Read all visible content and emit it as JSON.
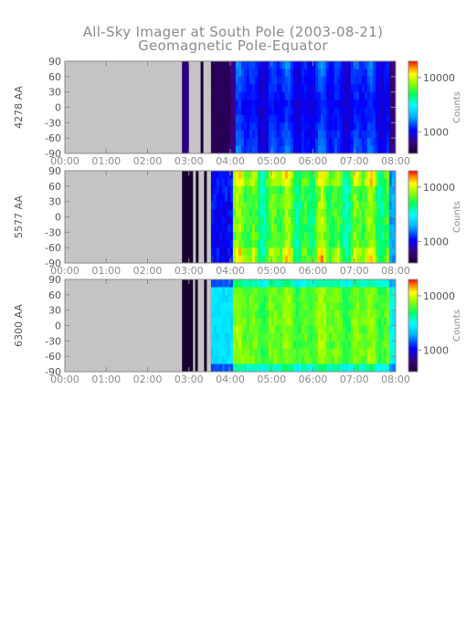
{
  "title": "All-Sky Imager at South Pole (2003-08-21)",
  "subtitle": "Geomagnetic Pole-Equator",
  "chart_data": [
    {
      "type": "heatmap",
      "ylabel": "4278 AA",
      "x_ticks": [
        "00:00",
        "01:00",
        "02:00",
        "03:00",
        "04:00",
        "05:00",
        "06:00",
        "07:00",
        "08:00"
      ],
      "xlim": [
        "00:00",
        "08:00"
      ],
      "y_ticks": [
        90,
        60,
        30,
        0,
        -30,
        -60,
        -90
      ],
      "ylim": [
        -90,
        90
      ],
      "no_data_intervals": [
        [
          "00:00",
          "02:50"
        ],
        [
          "03:00",
          "03:17"
        ],
        [
          "03:21",
          "03:32"
        ]
      ],
      "colorbar": {
        "label": "Counts",
        "ticks": [
          10000,
          1000
        ],
        "scale": "log",
        "range": [
          400,
          20000
        ]
      },
      "intensity": "low"
    },
    {
      "type": "heatmap",
      "ylabel": "5577 AA",
      "x_ticks": [
        "00:00",
        "01:00",
        "02:00",
        "03:00",
        "04:00",
        "05:00",
        "06:00",
        "07:00",
        "08:00"
      ],
      "xlim": [
        "00:00",
        "08:00"
      ],
      "y_ticks": [
        90,
        60,
        30,
        0,
        -30,
        -60,
        -90
      ],
      "ylim": [
        -90,
        90
      ],
      "no_data_intervals": [
        [
          "00:00",
          "02:50"
        ],
        [
          "03:06",
          "03:10"
        ],
        [
          "03:14",
          "03:22"
        ],
        [
          "03:26",
          "03:32"
        ]
      ],
      "colorbar": {
        "label": "Counts",
        "ticks": [
          10000,
          1000
        ],
        "scale": "log",
        "range": [
          400,
          20000
        ]
      },
      "intensity": "high"
    },
    {
      "type": "heatmap",
      "ylabel": "6300 AA",
      "x_ticks": [
        "00:00",
        "01:00",
        "02:00",
        "03:00",
        "04:00",
        "05:00",
        "06:00",
        "07:00",
        "08:00"
      ],
      "xlim": [
        "00:00",
        "08:00"
      ],
      "y_ticks": [
        90,
        60,
        30,
        0,
        -30,
        -60,
        -90
      ],
      "ylim": [
        -90,
        90
      ],
      "no_data_intervals": [
        [
          "00:00",
          "02:50"
        ],
        [
          "03:06",
          "03:09"
        ],
        [
          "03:13",
          "03:22"
        ],
        [
          "03:26",
          "03:32"
        ]
      ],
      "colorbar": {
        "label": "Counts",
        "ticks": [
          10000,
          1000
        ],
        "scale": "log",
        "range": [
          400,
          20000
        ]
      },
      "intensity": "medium"
    }
  ]
}
